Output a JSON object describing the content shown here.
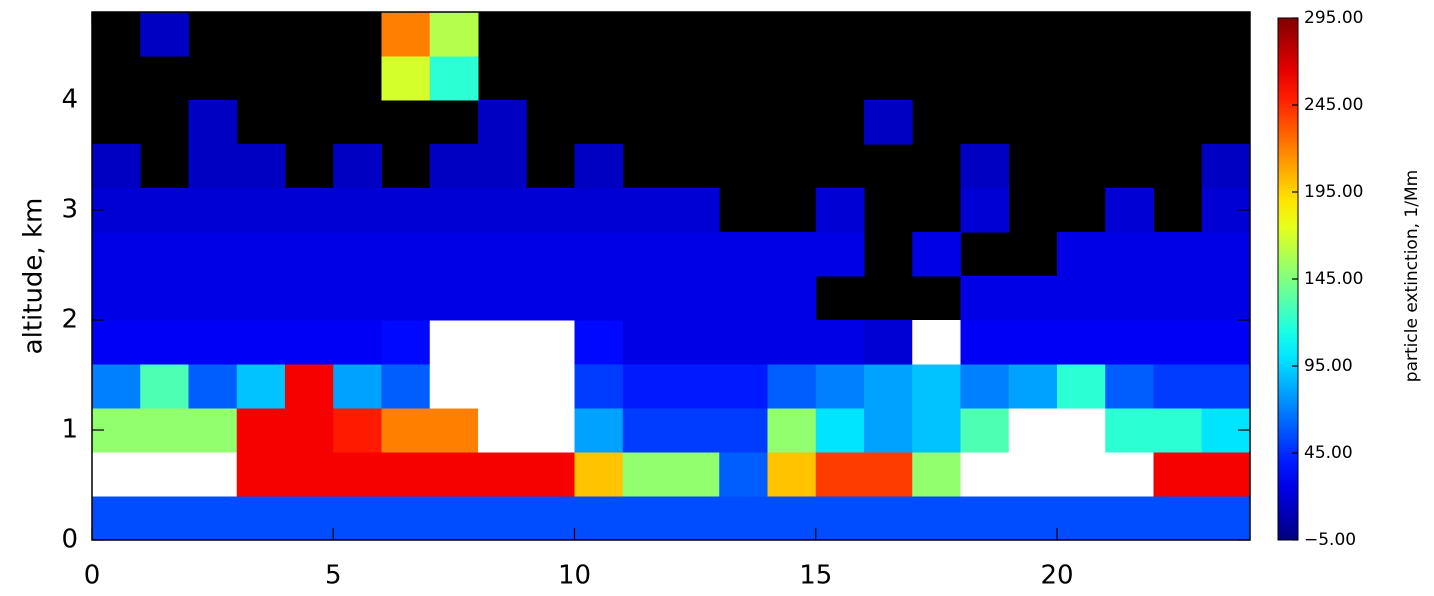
{
  "chart_data": {
    "type": "heatmap",
    "y_label": "altitude, km",
    "colorbar_label": "particle extinction, 1/Mm",
    "xlim": [
      0,
      24
    ],
    "ylim": [
      0,
      4.8
    ],
    "xticks": [
      0,
      5,
      10,
      15,
      20
    ],
    "yticks": [
      0,
      1,
      2,
      3,
      4
    ],
    "clim": [
      -5,
      295
    ],
    "cticks": [
      {
        "value": -5,
        "label": "−5.00"
      },
      {
        "value": 45,
        "label": "45.00"
      },
      {
        "value": 95,
        "label": "95.00"
      },
      {
        "value": 145,
        "label": "145.00"
      },
      {
        "value": 195,
        "label": "195.00"
      },
      {
        "value": 245,
        "label": "245.00"
      },
      {
        "value": 295,
        "label": "295.00"
      }
    ],
    "colormap": "jet",
    "xbins": [
      0,
      1,
      2,
      3,
      4,
      5,
      6,
      7,
      8,
      9,
      10,
      11,
      12,
      13,
      14,
      15,
      16,
      17,
      18,
      19,
      20,
      21,
      22,
      23,
      24
    ],
    "ybins": [
      0,
      0.4,
      0.8,
      1.2,
      1.6,
      2.0,
      2.4,
      2.8,
      3.2,
      3.6,
      4.0,
      4.4,
      4.8
    ],
    "z": [
      [
        55,
        55,
        55,
        55,
        55,
        55,
        55,
        55,
        55,
        55,
        55,
        55,
        55,
        55,
        55,
        55,
        55,
        55,
        55,
        55,
        55,
        55,
        55,
        55
      ],
      [
        320,
        320,
        320,
        260,
        260,
        260,
        260,
        260,
        260,
        260,
        200,
        150,
        150,
        60,
        200,
        240,
        240,
        150,
        320,
        320,
        320,
        320,
        260,
        260
      ],
      [
        150,
        150,
        150,
        260,
        260,
        250,
        220,
        220,
        320,
        320,
        80,
        50,
        50,
        50,
        150,
        100,
        80,
        90,
        130,
        300,
        300,
        120,
        120,
        100
      ],
      [
        70,
        130,
        60,
        90,
        260,
        80,
        60,
        320,
        320,
        320,
        50,
        40,
        40,
        40,
        60,
        70,
        80,
        90,
        70,
        80,
        120,
        60,
        50,
        50
      ],
      [
        30,
        30,
        30,
        30,
        30,
        30,
        35,
        300,
        320,
        320,
        35,
        25,
        25,
        25,
        25,
        25,
        20,
        320,
        30,
        30,
        30,
        30,
        30,
        30
      ],
      [
        25,
        25,
        25,
        25,
        25,
        25,
        25,
        25,
        25,
        25,
        25,
        25,
        25,
        25,
        25,
        null,
        null,
        null,
        25,
        25,
        25,
        25,
        25,
        25
      ],
      [
        25,
        25,
        25,
        25,
        25,
        25,
        25,
        25,
        25,
        25,
        25,
        25,
        25,
        25,
        25,
        25,
        null,
        25,
        null,
        null,
        25,
        25,
        25,
        25
      ],
      [
        20,
        20,
        20,
        20,
        20,
        20,
        20,
        20,
        20,
        20,
        20,
        20,
        20,
        null,
        null,
        20,
        null,
        null,
        20,
        null,
        null,
        20,
        null,
        20
      ],
      [
        15,
        null,
        15,
        15,
        null,
        15,
        null,
        15,
        15,
        null,
        15,
        null,
        null,
        null,
        null,
        null,
        null,
        null,
        15,
        null,
        null,
        null,
        null,
        15
      ],
      [
        null,
        null,
        15,
        null,
        null,
        null,
        null,
        null,
        15,
        null,
        null,
        null,
        null,
        null,
        null,
        null,
        15,
        null,
        null,
        null,
        null,
        null,
        null,
        null
      ],
      [
        null,
        null,
        null,
        null,
        null,
        null,
        170,
        120,
        null,
        null,
        null,
        null,
        null,
        null,
        null,
        null,
        null,
        null,
        null,
        null,
        null,
        null,
        null,
        null
      ],
      [
        null,
        15,
        null,
        null,
        null,
        null,
        220,
        160,
        null,
        null,
        null,
        null,
        null,
        null,
        null,
        null,
        null,
        null,
        null,
        null,
        null,
        null,
        null,
        null
      ]
    ]
  }
}
